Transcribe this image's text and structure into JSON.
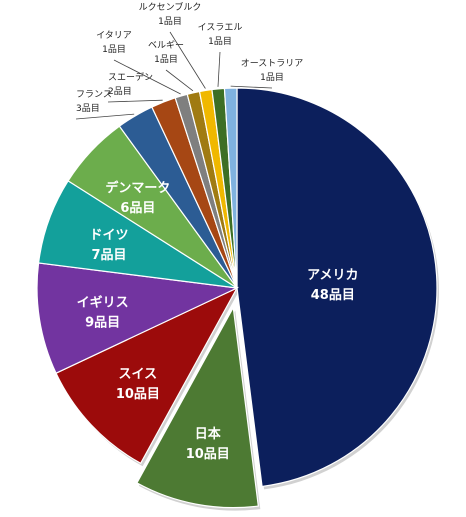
{
  "chart_data": {
    "type": "pie",
    "title": "",
    "unit": "品目",
    "categories": [
      "アメリカ",
      "日本",
      "スイス",
      "イギリス",
      "ドイツ",
      "デンマーク",
      "フランス",
      "スエーデン",
      "イタリア",
      "ベルギー",
      "ルクセンブルク",
      "イスラエル",
      "オーストラリア"
    ],
    "values": [
      48,
      10,
      10,
      9,
      7,
      6,
      3,
      2,
      1,
      1,
      1,
      1,
      1
    ],
    "value_labels": [
      "48品目",
      "10品目",
      "10品目",
      "9品目",
      "7品目",
      "6品目",
      "3品目",
      "2品目",
      "1品目",
      "1品目",
      "1品目",
      "1品目",
      "1品目"
    ],
    "colors": [
      "#0c1f5c",
      "#4d7a33",
      "#9c0b0b",
      "#7234a0",
      "#13a09b",
      "#6cad4c",
      "#2c5c94",
      "#a64714",
      "#7f7f7f",
      "#a07b12",
      "#f0b800",
      "#3d6f25",
      "#7fb2df"
    ],
    "exploded": [
      "日本"
    ],
    "legend": "none"
  }
}
